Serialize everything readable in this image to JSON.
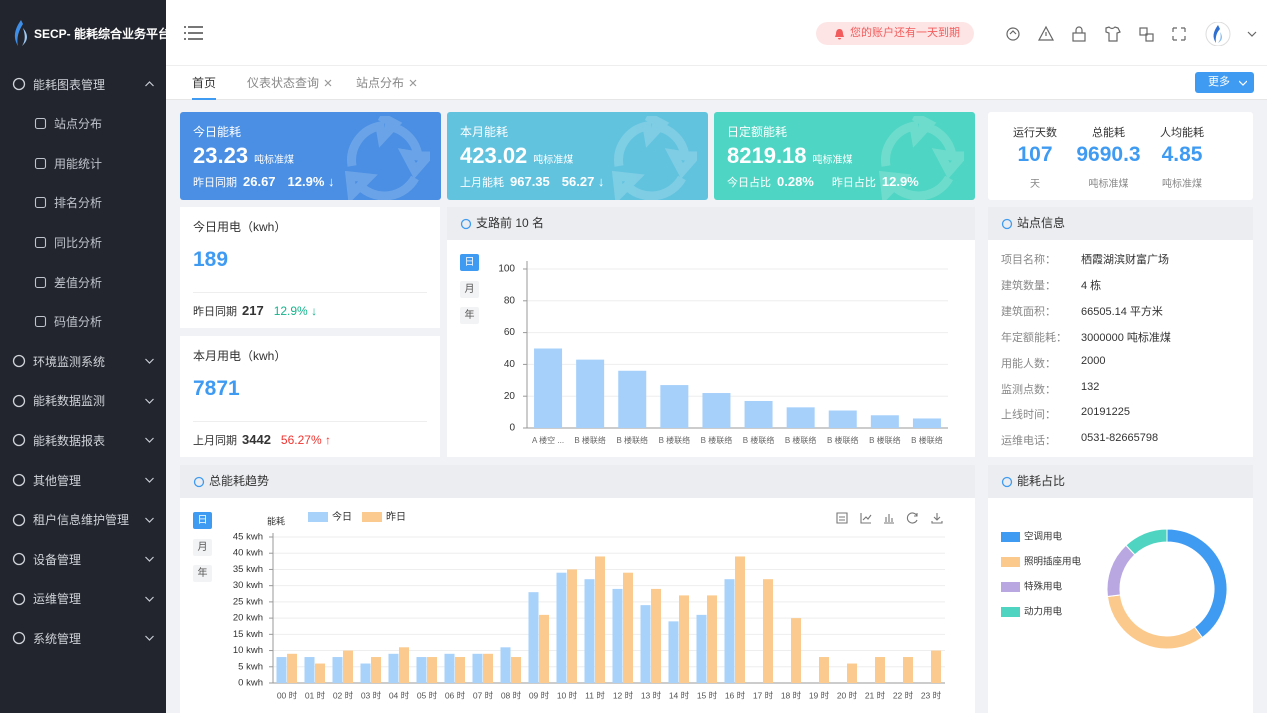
{
  "sidebar": {
    "logo": "SECP- 能耗综合业务平台",
    "menu": [
      {
        "label": "能耗图表管理",
        "expanded": true,
        "children": [
          "站点分布",
          "用能统计",
          "排名分析",
          "同比分析",
          "差值分析",
          "码值分析"
        ]
      },
      {
        "label": "环境监测系统"
      },
      {
        "label": "能耗数据监测"
      },
      {
        "label": "能耗数据报表"
      },
      {
        "label": "其他管理"
      },
      {
        "label": "租户信息维护管理"
      },
      {
        "label": "设备管理"
      },
      {
        "label": "运维管理"
      },
      {
        "label": "系统管理"
      }
    ]
  },
  "header": {
    "notice": "您的账户还有一天到期"
  },
  "tabs": {
    "items": [
      "首页",
      "仪表状态查询",
      "站点分布"
    ],
    "more": "更多"
  },
  "summary_cards": [
    {
      "title": "今日能耗",
      "value": "23.23",
      "unit": "吨标准煤",
      "color": "#4a8fe3",
      "footer": [
        {
          "label": "昨日同期",
          "value": "26.67"
        },
        {
          "value": "12.9% ↓"
        }
      ]
    },
    {
      "title": "本月能耗",
      "value": "423.02",
      "unit": "吨标准煤",
      "color": "#62c3df",
      "footer": [
        {
          "label": "上月能耗",
          "value": "967.35"
        },
        {
          "value": "56.27 ↓"
        }
      ]
    },
    {
      "title": "日定额能耗",
      "value": "8219.18",
      "unit": "吨标准煤",
      "color": "#4fd5c3",
      "footer": [
        {
          "label": "今日占比",
          "value": "0.28%"
        },
        {
          "label": "昨日占比",
          "value": "12.9%"
        }
      ]
    }
  ],
  "stats": [
    {
      "label": "运行天数",
      "value": "107",
      "unit": "天"
    },
    {
      "label": "总能耗",
      "value": "9690.3",
      "unit": "吨标准煤"
    },
    {
      "label": "人均能耗",
      "value": "4.85",
      "unit": "吨标准煤"
    }
  ],
  "power_cards": [
    {
      "title": "今日用电（kwh）",
      "value": "189",
      "compare_label": "昨日同期",
      "compare_value": "217",
      "change": "12.9% ↓",
      "trend": "down"
    },
    {
      "title": "本月用电（kwh）",
      "value": "7871",
      "compare_label": "上月同期",
      "compare_value": "3442",
      "change": "56.27% ↑",
      "trend": "up"
    }
  ],
  "site_info": {
    "title": "站点信息",
    "rows": [
      {
        "label": "项目名称：",
        "value": "栖霞湖滨财富广场"
      },
      {
        "label": "建筑数量：",
        "value": "4 栋"
      },
      {
        "label": "建筑面积：",
        "value": "66505.14 平方米"
      },
      {
        "label": "年定额能耗：",
        "value": "3000000 吨标准煤"
      },
      {
        "label": "用能人数：",
        "value": "2000"
      },
      {
        "label": "监测点数：",
        "value": "132"
      },
      {
        "label": "上线时间：",
        "value": "20191225"
      },
      {
        "label": "运维电话：",
        "value": "0531-82665798"
      }
    ]
  },
  "chart_data": [
    {
      "type": "bar",
      "title": "支路前 10 名",
      "period_buttons": [
        "日",
        "月",
        "年"
      ],
      "categories": [
        "A 楼空 ...",
        "B 楼联络",
        "B 楼联络",
        "B 楼联络",
        "B 楼联络",
        "B 楼联络",
        "B 楼联络",
        "B 楼联络",
        "B 楼联络",
        "B 楼联络"
      ],
      "values": [
        50,
        43,
        36,
        27,
        22,
        17,
        13,
        11,
        8,
        6
      ],
      "color": "#a6d0fa",
      "ylim": [
        0,
        100
      ],
      "yticks": [
        0,
        20,
        40,
        60,
        80,
        100
      ],
      "grid": true
    },
    {
      "type": "grouped-bar",
      "title": "总能耗趋势",
      "period_buttons": [
        "日",
        "月",
        "年"
      ],
      "y_label": "能耗",
      "categories": [
        "00 时",
        "01 时",
        "02 时",
        "03 时",
        "04 时",
        "05 时",
        "06 时",
        "07 时",
        "08 时",
        "09 时",
        "10 时",
        "11 时",
        "12 时",
        "13 时",
        "14 时",
        "15 时",
        "16 时",
        "17 时",
        "18 时",
        "19 时",
        "20 时",
        "21 时",
        "22 时",
        "23 时"
      ],
      "series": [
        {
          "name": "今日",
          "color": "#a9d2fb",
          "values": [
            8,
            8,
            8,
            6,
            9,
            8,
            9,
            9,
            11,
            28,
            34,
            32,
            29,
            24,
            19,
            21,
            32,
            null,
            null,
            null,
            null,
            null,
            null,
            null
          ]
        },
        {
          "name": "昨日",
          "color": "#fbca8e",
          "values": [
            9,
            6,
            10,
            8,
            11,
            8,
            8,
            9,
            8,
            21,
            35,
            39,
            34,
            29,
            27,
            27,
            39,
            32,
            20,
            8,
            6,
            8,
            8,
            10
          ]
        }
      ],
      "ylim": [
        0,
        45
      ],
      "yticks": [
        {
          "value": 0,
          "label": "0 kwh"
        },
        {
          "value": 5,
          "label": "5 kwh"
        },
        {
          "value": 10,
          "label": "10 kwh"
        },
        {
          "value": 15,
          "label": "15 kwh"
        },
        {
          "value": 20,
          "label": "20 kwh"
        },
        {
          "value": 25,
          "label": "25 kwh"
        },
        {
          "value": 30,
          "label": "30 kwh"
        },
        {
          "value": 35,
          "label": "35 kwh"
        },
        {
          "value": 40,
          "label": "40 kwh"
        },
        {
          "value": 45,
          "label": "45 kwh"
        }
      ],
      "grid": true
    },
    {
      "type": "donut",
      "title": "能耗占比",
      "categories": [
        "空调用电",
        "照明插座用电",
        "特殊用电",
        "动力用电"
      ],
      "values": [
        40,
        33,
        15,
        12
      ],
      "colors": [
        "#3f9bf2",
        "#fbc98b",
        "#b9a7e2",
        "#4fd4c1"
      ]
    }
  ]
}
